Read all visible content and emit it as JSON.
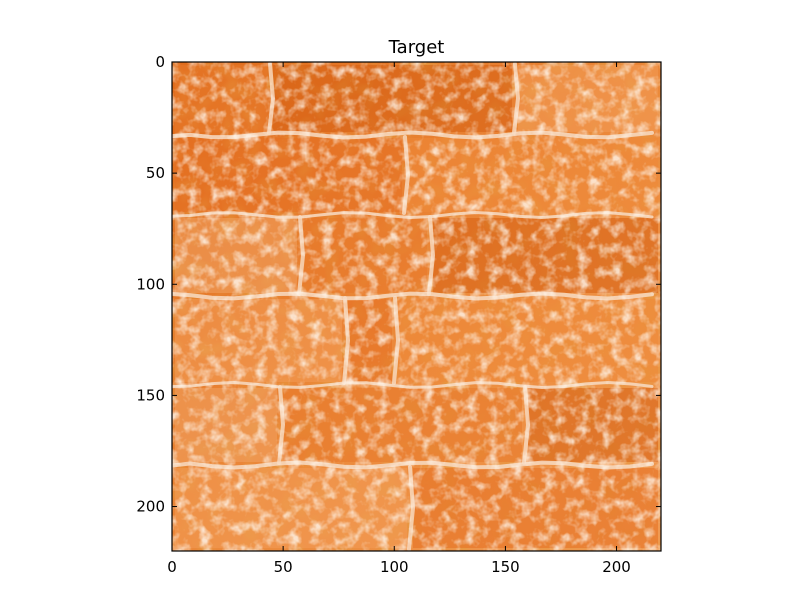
{
  "figure": {
    "title": "Target",
    "x_ticks": [
      "0",
      "50",
      "100",
      "150",
      "200"
    ],
    "y_ticks": [
      "0",
      "50",
      "100",
      "150",
      "200"
    ],
    "x_range": [
      0,
      220
    ],
    "y_range": [
      0,
      220
    ],
    "y_inverted": true,
    "image_subject": "orange painted brick wall texture"
  },
  "colors": {
    "paint": "#e8782a",
    "paint_dark": "#d65f12",
    "paint_light": "#f29a55",
    "mortar": "#f7dcc4"
  }
}
